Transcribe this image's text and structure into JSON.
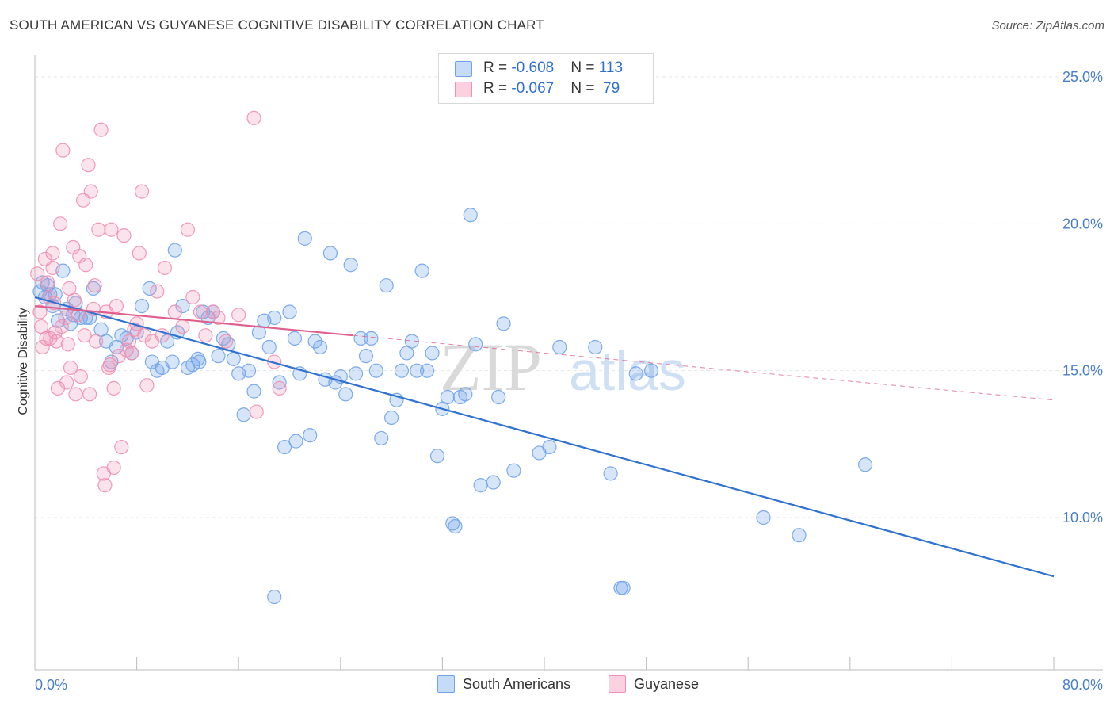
{
  "header": {
    "title": "SOUTH AMERICAN VS GUYANESE COGNITIVE DISABILITY CORRELATION CHART",
    "source": "Source: ZipAtlas.com"
  },
  "watermark": {
    "zip": "ZIP",
    "atlas": "atlas"
  },
  "legend": {
    "rows": [
      {
        "r_label": "R = ",
        "r_value": "-0.608",
        "n_label": "N = ",
        "n_value": "113",
        "color": "#6fa3e8"
      },
      {
        "r_label": "R = ",
        "r_value": "-0.067",
        "n_label": "N = ",
        "n_value": " 79",
        "color": "#f08fb0"
      }
    ]
  },
  "bottom_legend": [
    {
      "label": "South Americans",
      "color": "#6fa3e8"
    },
    {
      "label": "Guyanese",
      "color": "#f08fb0"
    }
  ],
  "chart_data": {
    "type": "scatter",
    "title": "SOUTH AMERICAN VS GUYANESE COGNITIVE DISABILITY CORRELATION CHART",
    "xlabel": "",
    "ylabel": "Cognitive Disability",
    "xlim": [
      0,
      80
    ],
    "ylim": [
      5,
      25.5
    ],
    "x_tick_labels": [
      "0.0%",
      "80.0%"
    ],
    "y_ticks": [
      10,
      15,
      20,
      25
    ],
    "y_tick_labels": [
      "10.0%",
      "15.0%",
      "20.0%",
      "25.0%"
    ],
    "grid": true,
    "legend_position": "top-center",
    "series": [
      {
        "name": "South Americans",
        "color": "#6fa3e8",
        "line_color": "#2f72d1",
        "regression": {
          "x0": 0,
          "y0": 17.5,
          "x1": 80,
          "y1": 8.0
        },
        "points": [
          [
            0.4,
            17.7
          ],
          [
            0.6,
            18.0
          ],
          [
            0.8,
            17.5
          ],
          [
            1.0,
            17.9
          ],
          [
            1.2,
            17.6
          ],
          [
            1.4,
            17.2
          ],
          [
            1.6,
            17.6
          ],
          [
            1.8,
            16.7
          ],
          [
            2.2,
            18.4
          ],
          [
            2.8,
            16.6
          ],
          [
            3.2,
            17.3
          ],
          [
            3.6,
            16.8
          ],
          [
            4.0,
            16.8
          ],
          [
            4.6,
            17.8
          ],
          [
            5.2,
            16.4
          ],
          [
            5.6,
            16.0
          ],
          [
            6.0,
            15.3
          ],
          [
            6.4,
            15.8
          ],
          [
            6.8,
            16.2
          ],
          [
            7.2,
            16.1
          ],
          [
            7.6,
            15.6
          ],
          [
            8.0,
            16.3
          ],
          [
            8.4,
            17.2
          ],
          [
            9.2,
            15.3
          ],
          [
            9.6,
            15.0
          ],
          [
            10.0,
            15.1
          ],
          [
            10.4,
            16.0
          ],
          [
            10.8,
            15.3
          ],
          [
            11.2,
            16.3
          ],
          [
            11.6,
            17.2
          ],
          [
            12.0,
            15.1
          ],
          [
            12.4,
            15.2
          ],
          [
            12.8,
            15.4
          ],
          [
            13.2,
            17.0
          ],
          [
            13.6,
            16.8
          ],
          [
            14.0,
            17.0
          ],
          [
            14.4,
            15.5
          ],
          [
            14.8,
            16.1
          ],
          [
            15.2,
            15.9
          ],
          [
            15.6,
            15.4
          ],
          [
            16.0,
            14.9
          ],
          [
            16.4,
            13.5
          ],
          [
            16.8,
            15.0
          ],
          [
            17.2,
            14.3
          ],
          [
            17.6,
            16.3
          ],
          [
            18.0,
            16.7
          ],
          [
            18.4,
            15.8
          ],
          [
            18.8,
            16.8
          ],
          [
            19.2,
            14.6
          ],
          [
            19.6,
            12.4
          ],
          [
            20.0,
            17.0
          ],
          [
            20.4,
            16.1
          ],
          [
            20.8,
            14.9
          ],
          [
            21.2,
            19.5
          ],
          [
            21.6,
            12.8
          ],
          [
            22.0,
            16.0
          ],
          [
            22.4,
            15.8
          ],
          [
            22.8,
            14.7
          ],
          [
            23.2,
            19.0
          ],
          [
            23.6,
            14.6
          ],
          [
            24.0,
            14.8
          ],
          [
            24.4,
            14.2
          ],
          [
            24.8,
            18.6
          ],
          [
            25.2,
            14.9
          ],
          [
            25.6,
            16.1
          ],
          [
            26.0,
            15.5
          ],
          [
            26.4,
            16.1
          ],
          [
            26.8,
            15.0
          ],
          [
            27.2,
            12.7
          ],
          [
            27.6,
            17.9
          ],
          [
            28.0,
            13.4
          ],
          [
            28.4,
            14.0
          ],
          [
            28.8,
            15.0
          ],
          [
            29.2,
            15.6
          ],
          [
            29.6,
            16.0
          ],
          [
            30.0,
            15.0
          ],
          [
            30.4,
            18.4
          ],
          [
            30.8,
            15.0
          ],
          [
            31.2,
            15.6
          ],
          [
            31.6,
            12.1
          ],
          [
            32.0,
            13.7
          ],
          [
            32.4,
            14.1
          ],
          [
            32.8,
            9.8
          ],
          [
            33.0,
            9.7
          ],
          [
            33.4,
            14.1
          ],
          [
            33.8,
            14.2
          ],
          [
            34.2,
            20.3
          ],
          [
            34.6,
            15.9
          ],
          [
            35.0,
            11.1
          ],
          [
            36.0,
            11.2
          ],
          [
            36.4,
            14.1
          ],
          [
            36.8,
            16.6
          ],
          [
            37.6,
            11.6
          ],
          [
            39.6,
            12.2
          ],
          [
            40.4,
            12.4
          ],
          [
            41.2,
            15.8
          ],
          [
            44.0,
            15.8
          ],
          [
            45.2,
            11.5
          ],
          [
            46.0,
            7.6
          ],
          [
            46.2,
            7.6
          ],
          [
            47.2,
            14.9
          ],
          [
            48.4,
            15.0
          ],
          [
            57.2,
            10.0
          ],
          [
            60.0,
            9.4
          ],
          [
            65.2,
            11.8
          ],
          [
            18.8,
            7.3
          ],
          [
            9.0,
            17.8
          ],
          [
            11.0,
            19.1
          ],
          [
            3.0,
            16.9
          ],
          [
            4.3,
            16.8
          ],
          [
            2.5,
            17.1
          ],
          [
            20.5,
            12.6
          ],
          [
            12.9,
            15.3
          ]
        ]
      },
      {
        "name": "Guyanese",
        "color": "#f08fb0",
        "line_color": "#e0608c",
        "regression": {
          "x0": 0,
          "y0": 17.2,
          "x1": 25,
          "y1": 16.2
        },
        "extension": {
          "x0": 25,
          "y0": 16.2,
          "x1": 80,
          "y1": 14.0
        },
        "points": [
          [
            0.2,
            18.3
          ],
          [
            0.4,
            17.0
          ],
          [
            0.5,
            16.5
          ],
          [
            0.6,
            15.8
          ],
          [
            0.8,
            18.8
          ],
          [
            1.0,
            18.0
          ],
          [
            1.1,
            17.5
          ],
          [
            1.2,
            16.1
          ],
          [
            1.4,
            18.5
          ],
          [
            1.5,
            17.3
          ],
          [
            1.6,
            16.3
          ],
          [
            1.8,
            14.4
          ],
          [
            2.0,
            20.0
          ],
          [
            2.2,
            22.5
          ],
          [
            2.4,
            16.8
          ],
          [
            2.5,
            14.6
          ],
          [
            2.6,
            15.9
          ],
          [
            2.8,
            15.1
          ],
          [
            3.0,
            19.2
          ],
          [
            3.1,
            17.4
          ],
          [
            3.2,
            14.2
          ],
          [
            3.4,
            16.9
          ],
          [
            3.5,
            18.9
          ],
          [
            3.6,
            14.8
          ],
          [
            3.8,
            20.8
          ],
          [
            4.0,
            18.6
          ],
          [
            4.2,
            22.0
          ],
          [
            4.3,
            14.2
          ],
          [
            4.4,
            21.1
          ],
          [
            4.6,
            17.1
          ],
          [
            4.8,
            16.0
          ],
          [
            5.0,
            19.8
          ],
          [
            5.2,
            23.2
          ],
          [
            5.4,
            11.5
          ],
          [
            5.5,
            11.1
          ],
          [
            5.6,
            17.0
          ],
          [
            5.8,
            15.1
          ],
          [
            6.0,
            19.8
          ],
          [
            6.2,
            14.4
          ],
          [
            6.4,
            17.2
          ],
          [
            6.6,
            15.5
          ],
          [
            6.8,
            12.4
          ],
          [
            7.0,
            19.6
          ],
          [
            7.2,
            15.7
          ],
          [
            7.4,
            16.0
          ],
          [
            7.6,
            15.6
          ],
          [
            8.0,
            16.6
          ],
          [
            8.2,
            19.0
          ],
          [
            8.4,
            21.1
          ],
          [
            8.6,
            16.2
          ],
          [
            8.8,
            14.5
          ],
          [
            9.2,
            16.0
          ],
          [
            10.0,
            16.2
          ],
          [
            10.2,
            18.5
          ],
          [
            11.0,
            17.0
          ],
          [
            12.0,
            19.8
          ],
          [
            12.4,
            17.5
          ],
          [
            13.0,
            17.0
          ],
          [
            13.4,
            16.2
          ],
          [
            14.0,
            17.0
          ],
          [
            14.4,
            16.8
          ],
          [
            15.0,
            16.0
          ],
          [
            16.0,
            16.9
          ],
          [
            17.2,
            23.6
          ],
          [
            17.4,
            13.6
          ],
          [
            18.8,
            15.3
          ],
          [
            19.2,
            14.4
          ],
          [
            6.2,
            11.7
          ],
          [
            1.4,
            19.0
          ],
          [
            2.7,
            17.8
          ],
          [
            0.9,
            16.1
          ],
          [
            3.9,
            16.2
          ],
          [
            7.8,
            16.4
          ],
          [
            9.6,
            17.7
          ],
          [
            11.6,
            16.5
          ],
          [
            2.1,
            16.5
          ],
          [
            5.9,
            15.2
          ],
          [
            4.7,
            17.9
          ],
          [
            1.7,
            16.0
          ]
        ]
      }
    ]
  }
}
